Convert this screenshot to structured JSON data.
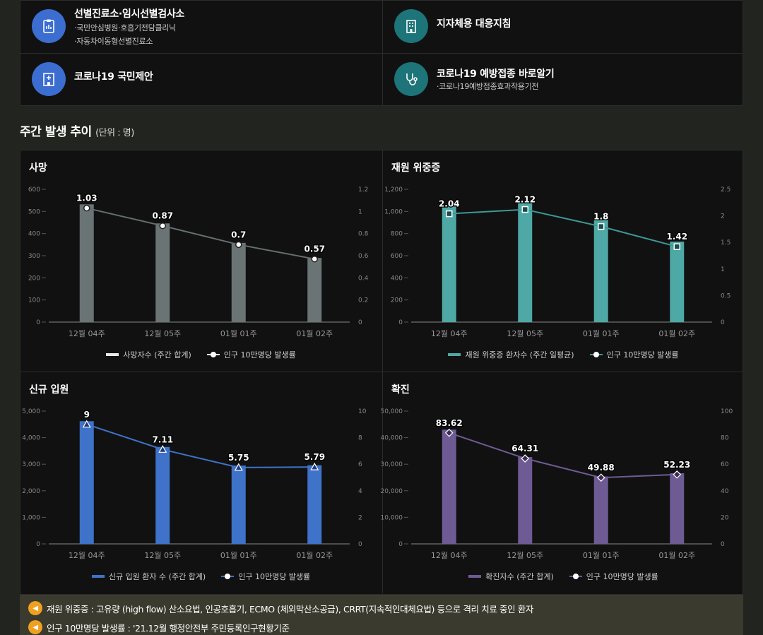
{
  "top_links": [
    {
      "title": "선별진료소·임시선별검사소",
      "subs": [
        "·국민안심병원·호흡기전담클리닉",
        "·자동차이동형선별진료소"
      ],
      "icon": "clipboard-icon",
      "color": "#3b6ed0"
    },
    {
      "title": "지자체용 대응지침",
      "subs": [],
      "icon": "building-icon",
      "color": "#1d7479"
    },
    {
      "title": "코로나19 국민제안",
      "subs": [],
      "icon": "hospital-icon",
      "color": "#3b6ed0"
    },
    {
      "title": "코로나19 예방접종 바로알기",
      "subs": [
        "·코로나19예방접종효과작용기전"
      ],
      "icon": "stethoscope-icon",
      "color": "#1d7479"
    }
  ],
  "section": {
    "title": "주간 발생 추이",
    "unit": "(단위 : 명)"
  },
  "chart_data": [
    {
      "type": "bar",
      "title": "사망",
      "categories": [
        "12월 04주",
        "12월 05주",
        "01월 01주",
        "01월 02주"
      ],
      "series": [
        {
          "name": "사망자수 (주간 합계)",
          "values": [
            532,
            446,
            358,
            290
          ]
        },
        {
          "name": "인구 10만명당 발생률",
          "values": [
            1.03,
            0.87,
            0.7,
            0.57
          ]
        }
      ],
      "ylim": [
        0,
        600
      ],
      "y2lim": [
        0,
        1.2
      ],
      "yticks": [
        "0",
        "100",
        "200",
        "300",
        "400",
        "500",
        "600"
      ],
      "y2ticks": [
        "0",
        "0.2",
        "0.4",
        "0.6",
        "0.8",
        "1",
        "1.2"
      ],
      "bar_color": "#6b7475",
      "line_color": "#666e6f",
      "marker": "circle"
    },
    {
      "type": "bar",
      "title": "재원 위중증",
      "categories": [
        "12월 04주",
        "12월 05주",
        "01월 01주",
        "01월 02주"
      ],
      "series": [
        {
          "name": "재원 위중증 환자수 (주간 일평균)",
          "values": [
            1044,
            1082,
            924,
            727
          ]
        },
        {
          "name": "인구 10만명당 발생률",
          "values": [
            2.04,
            2.12,
            1.8,
            1.42
          ]
        }
      ],
      "ylim": [
        0,
        1200
      ],
      "y2lim": [
        0,
        2.5
      ],
      "yticks": [
        "0",
        "200",
        "400",
        "600",
        "800",
        "1,000",
        "1,200"
      ],
      "y2ticks": [
        "0",
        "0.5",
        "1",
        "1.5",
        "2",
        "2.5"
      ],
      "bar_color": "#4ea8a6",
      "line_color": "#3d9896",
      "marker": "square"
    },
    {
      "type": "bar",
      "title": "신규 입원",
      "categories": [
        "12월 04주",
        "12월 05주",
        "01월 01주",
        "01월 02주"
      ],
      "series": [
        {
          "name": "신규 입원 환자 수 (주간 합계)",
          "values": [
            4620,
            3650,
            2950,
            2960
          ]
        },
        {
          "name": "인구 10만명당 발생률",
          "values": [
            9,
            7.11,
            5.75,
            5.79
          ]
        }
      ],
      "ylim": [
        0,
        5000
      ],
      "y2lim": [
        0,
        10
      ],
      "yticks": [
        "0",
        "1,000",
        "2,000",
        "3,000",
        "4,000",
        "5,000"
      ],
      "y2ticks": [
        "0",
        "2",
        "4",
        "6",
        "8",
        "10"
      ],
      "bar_color": "#3f72c9",
      "line_color": "#3f72c9",
      "marker": "triangle"
    },
    {
      "type": "bar",
      "title": "확진",
      "categories": [
        "12월 04주",
        "12월 05주",
        "01월 01주",
        "01월 02주"
      ],
      "series": [
        {
          "name": "확진자수 (주간 합계)",
          "values": [
            43000,
            32700,
            25400,
            26600
          ]
        },
        {
          "name": "인구 10만명당 발생률",
          "values": [
            83.62,
            64.31,
            49.88,
            52.23
          ]
        }
      ],
      "ylim": [
        0,
        50000
      ],
      "y2lim": [
        0,
        100
      ],
      "yticks": [
        "0",
        "10,000",
        "20,000",
        "30,000",
        "40,000",
        "50,000"
      ],
      "y2ticks": [
        "0",
        "20",
        "40",
        "60",
        "80",
        "100"
      ],
      "bar_color": "#6e5b94",
      "line_color": "#6e5b94",
      "marker": "diamond"
    }
  ],
  "notes": [
    "재원 위중증 : 고유량 (high flow) 산소요법, 인공호흡기, ECMO (체외막산소공급), CRRT(지속적인대체요법) 등으로 격리 치료 중인 환자",
    "인구 10만명당 발생률 : '21.12월 행정안전부 주민등록인구현황기준"
  ]
}
